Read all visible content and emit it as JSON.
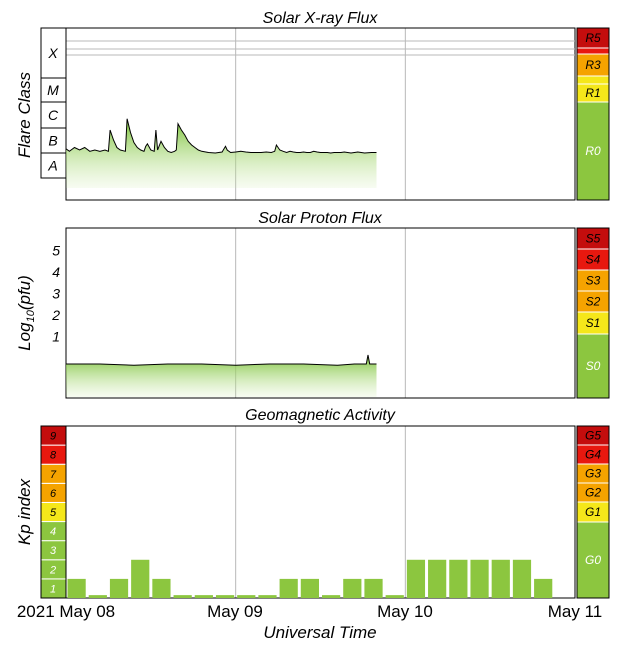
{
  "chart_data": [
    {
      "type": "area",
      "title": "Solar X-ray Flux",
      "ylabel": "Flare Class",
      "y_classes": [
        "X",
        "M",
        "C",
        "B",
        "A"
      ],
      "scale_labels": [
        "R5",
        "R3",
        "R1",
        "R0"
      ],
      "series_level": [
        [
          0.0,
          1.65
        ],
        [
          0.02,
          1.55
        ],
        [
          0.05,
          1.7
        ],
        [
          0.08,
          1.6
        ],
        [
          0.11,
          1.7
        ],
        [
          0.14,
          1.55
        ],
        [
          0.17,
          1.6
        ],
        [
          0.2,
          1.55
        ],
        [
          0.23,
          1.6
        ],
        [
          0.25,
          1.55
        ],
        [
          0.26,
          2.4
        ],
        [
          0.28,
          2.0
        ],
        [
          0.3,
          1.7
        ],
        [
          0.32,
          1.6
        ],
        [
          0.35,
          1.55
        ],
        [
          0.36,
          2.85
        ],
        [
          0.38,
          2.3
        ],
        [
          0.4,
          1.9
        ],
        [
          0.42,
          1.7
        ],
        [
          0.44,
          1.6
        ],
        [
          0.46,
          1.55
        ],
        [
          0.47,
          1.75
        ],
        [
          0.48,
          1.85
        ],
        [
          0.5,
          1.6
        ],
        [
          0.52,
          1.55
        ],
        [
          0.53,
          2.4
        ],
        [
          0.54,
          1.6
        ],
        [
          0.56,
          1.95
        ],
        [
          0.58,
          1.7
        ],
        [
          0.6,
          1.55
        ],
        [
          0.62,
          1.5
        ],
        [
          0.64,
          1.55
        ],
        [
          0.65,
          1.6
        ],
        [
          0.66,
          2.65
        ],
        [
          0.68,
          2.4
        ],
        [
          0.7,
          2.2
        ],
        [
          0.72,
          1.95
        ],
        [
          0.74,
          1.8
        ],
        [
          0.76,
          1.7
        ],
        [
          0.78,
          1.6
        ],
        [
          0.8,
          1.55
        ],
        [
          0.84,
          1.5
        ],
        [
          0.88,
          1.48
        ],
        [
          0.9,
          1.5
        ],
        [
          0.92,
          1.52
        ],
        [
          0.94,
          1.75
        ],
        [
          0.95,
          1.6
        ],
        [
          0.97,
          1.5
        ],
        [
          1.0,
          1.52
        ],
        [
          1.03,
          1.55
        ],
        [
          1.06,
          1.52
        ],
        [
          1.09,
          1.5
        ],
        [
          1.12,
          1.5
        ],
        [
          1.15,
          1.5
        ],
        [
          1.18,
          1.52
        ],
        [
          1.21,
          1.5
        ],
        [
          1.23,
          1.55
        ],
        [
          1.24,
          1.8
        ],
        [
          1.26,
          1.6
        ],
        [
          1.28,
          1.55
        ],
        [
          1.3,
          1.5
        ],
        [
          1.32,
          1.55
        ],
        [
          1.34,
          1.52
        ],
        [
          1.36,
          1.5
        ],
        [
          1.38,
          1.5
        ],
        [
          1.4,
          1.52
        ],
        [
          1.42,
          1.5
        ],
        [
          1.44,
          1.5
        ],
        [
          1.46,
          1.55
        ],
        [
          1.48,
          1.52
        ],
        [
          1.5,
          1.5
        ],
        [
          1.52,
          1.5
        ],
        [
          1.54,
          1.5
        ],
        [
          1.56,
          1.48
        ],
        [
          1.58,
          1.5
        ],
        [
          1.6,
          1.5
        ],
        [
          1.62,
          1.5
        ],
        [
          1.64,
          1.52
        ],
        [
          1.66,
          1.5
        ],
        [
          1.68,
          1.48
        ],
        [
          1.7,
          1.5
        ],
        [
          1.72,
          1.52
        ],
        [
          1.74,
          1.5
        ],
        [
          1.76,
          1.48
        ],
        [
          1.8,
          1.5
        ],
        [
          1.83,
          1.5
        ]
      ]
    },
    {
      "type": "area",
      "title": "Solar Proton Flux",
      "ylabel": "Log10(pfu)",
      "yticks": [
        "1",
        "2",
        "3",
        "4",
        "5"
      ],
      "scale_labels": [
        "S5",
        "S4",
        "S3",
        "S2",
        "S1",
        "S0"
      ],
      "series_log_pfu": [
        [
          0.0,
          -0.1
        ],
        [
          0.2,
          -0.1
        ],
        [
          0.4,
          -0.12
        ],
        [
          0.6,
          -0.1
        ],
        [
          0.8,
          -0.1
        ],
        [
          1.0,
          -0.12
        ],
        [
          1.2,
          -0.1
        ],
        [
          1.4,
          -0.1
        ],
        [
          1.6,
          -0.12
        ],
        [
          1.7,
          -0.1
        ],
        [
          1.77,
          -0.1
        ],
        [
          1.78,
          0.05
        ],
        [
          1.79,
          -0.1
        ],
        [
          1.83,
          -0.1
        ]
      ]
    },
    {
      "type": "bar",
      "title": "Geomagnetic Activity",
      "ylabel": "Kp index",
      "yticks": [
        "1",
        "2",
        "3",
        "4",
        "5",
        "6",
        "7",
        "8",
        "9"
      ],
      "scale_labels": [
        "G5",
        "G4",
        "G3",
        "G2",
        "G1",
        "G0"
      ],
      "values": [
        1,
        0,
        1,
        2,
        1,
        0,
        0,
        0,
        0,
        0,
        1,
        1,
        0,
        1,
        1,
        0,
        2,
        2,
        2,
        2,
        2,
        2,
        1
      ],
      "ylim": [
        0,
        9
      ]
    }
  ],
  "x_axis": {
    "label": "Universal Time",
    "ticks": [
      "2021 May 08",
      "May 09",
      "May 10",
      "May 11"
    ],
    "xlim_days": [
      0,
      3
    ]
  },
  "colors": {
    "grid": "#b8b8b8",
    "green": "#8cc63f",
    "yellow": "#f5e71a",
    "orange": "#f5a300",
    "red": "#e8180f",
    "darkred": "#c40d0d"
  }
}
